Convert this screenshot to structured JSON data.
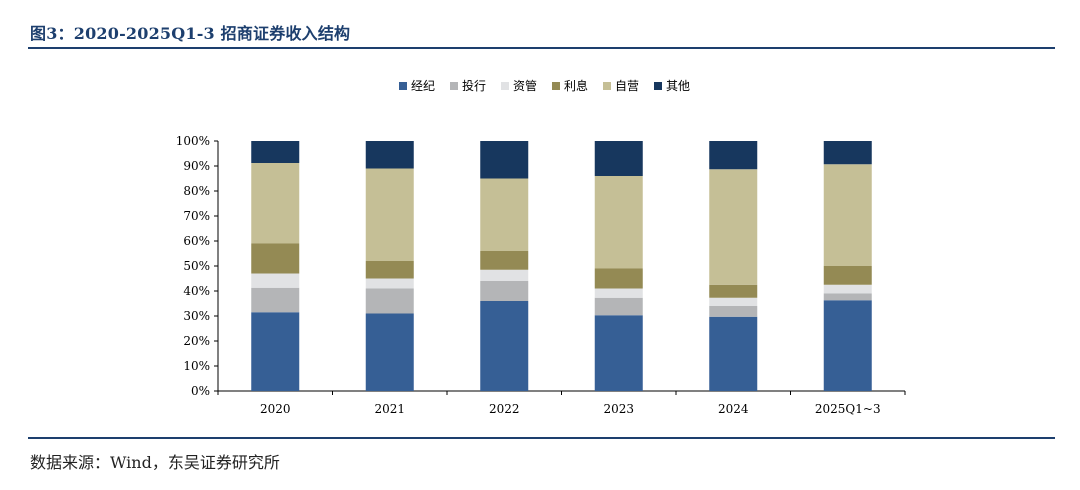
{
  "figure": {
    "label": "图3：",
    "title": "2020-2025Q1-3 招商证券收入结构",
    "source": "数据来源：Wind，东吴证券研究所"
  },
  "chart_data": {
    "type": "bar",
    "stacked": true,
    "title": "2020-2025Q1-3 招商证券收入结构",
    "categories": [
      "2020",
      "2021",
      "2022",
      "2023",
      "2024",
      "2025Q1~3"
    ],
    "y_ticks": [
      "0%",
      "10%",
      "20%",
      "30%",
      "40%",
      "50%",
      "60%",
      "70%",
      "80%",
      "90%",
      "100%"
    ],
    "ylim": [
      0,
      100
    ],
    "legend_position": "top-center",
    "series": [
      {
        "name": "经纪",
        "color": "#365f95",
        "values": [
          31.5,
          31,
          36,
          30.3,
          29.7,
          36.3
        ]
      },
      {
        "name": "投行",
        "color": "#b4b5b7",
        "values": [
          9.8,
          10,
          8,
          7,
          4.3,
          2.7
        ]
      },
      {
        "name": "资管",
        "color": "#e1e2e4",
        "values": [
          5.7,
          4,
          4.5,
          3.7,
          3.3,
          3.5
        ]
      },
      {
        "name": "利息",
        "color": "#948a54",
        "values": [
          12,
          7,
          7.5,
          8,
          5.2,
          7.5
        ]
      },
      {
        "name": "自营",
        "color": "#c5bf96",
        "values": [
          32.2,
          37,
          29,
          37,
          46.2,
          40.7
        ]
      },
      {
        "name": "其他",
        "color": "#17375e",
        "values": [
          8.8,
          11,
          15,
          14,
          11.3,
          9.3
        ]
      }
    ]
  }
}
